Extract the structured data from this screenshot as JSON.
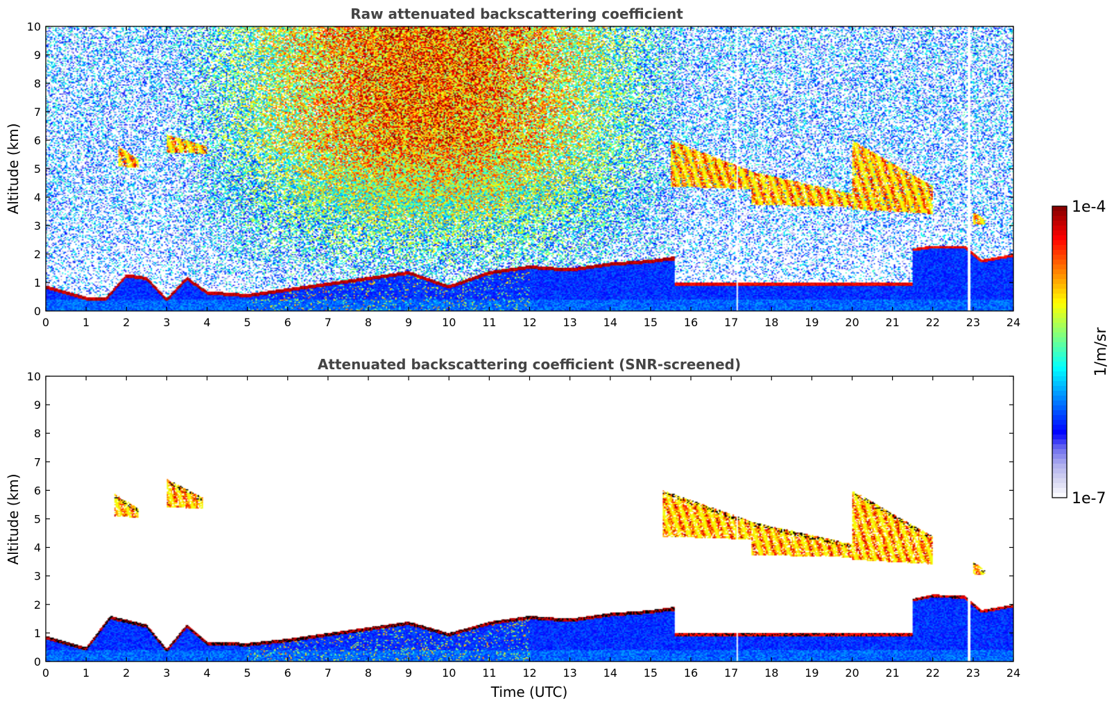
{
  "colors": {
    "colormap": [
      "#ffffff",
      "#d8d8f2",
      "#b0b0ee",
      "#7070ee",
      "#0000ff",
      "#0040ff",
      "#0080ff",
      "#00c0ff",
      "#00ffff",
      "#40ffc0",
      "#80ff80",
      "#c0ff40",
      "#ffff00",
      "#ffc000",
      "#ff8000",
      "#ff4000",
      "#ff0000",
      "#c00000",
      "#800000"
    ],
    "saturated": "#000000"
  },
  "colorbar": {
    "label": "1/m/sr",
    "max_label": "1e-4",
    "min_label": "1e-7",
    "log_min": -7,
    "log_max": -4
  },
  "chart_data": [
    {
      "type": "heatmap",
      "panel": "raw",
      "title": "Raw attenuated backscattering coefficient",
      "xlabel": "",
      "ylabel": "Altitude (km)",
      "xlim": [
        0,
        24
      ],
      "ylim": [
        0,
        10
      ],
      "xticks": [
        "0",
        "1",
        "2",
        "3",
        "4",
        "5",
        "6",
        "7",
        "8",
        "9",
        "10",
        "11",
        "12",
        "13",
        "14",
        "15",
        "16",
        "17",
        "18",
        "19",
        "20",
        "21",
        "22",
        "23",
        "24"
      ],
      "yticks": [
        "0",
        "1",
        "2",
        "3",
        "4",
        "5",
        "6",
        "7",
        "8",
        "9",
        "10"
      ],
      "grid": false,
      "features": {
        "boundary_layer_top_km": [
          [
            0,
            0.9
          ],
          [
            0.5,
            0.7
          ],
          [
            1,
            0.5
          ],
          [
            1.5,
            0.5
          ],
          [
            2,
            1.3
          ],
          [
            2.5,
            1.2
          ],
          [
            3,
            0.45
          ],
          [
            3.5,
            1.2
          ],
          [
            4,
            0.7
          ],
          [
            5,
            0.6
          ],
          [
            6,
            0.8
          ],
          [
            7,
            1.0
          ],
          [
            8,
            1.2
          ],
          [
            9,
            1.4
          ],
          [
            10,
            0.9
          ],
          [
            11,
            1.4
          ],
          [
            12,
            1.6
          ],
          [
            13,
            1.5
          ],
          [
            14,
            1.7
          ],
          [
            15,
            1.8
          ],
          [
            15.5,
            1.9
          ]
        ],
        "upper_cloud_layers": [
          {
            "t_start": 1.8,
            "t_end": 2.3,
            "base_km": 5.0,
            "top_km": 5.8
          },
          {
            "t_start": 3.0,
            "t_end": 4.0,
            "base_km": 5.5,
            "top_km": 6.2
          },
          {
            "t_start": 15.5,
            "t_end": 17.5,
            "base_km": 4.2,
            "top_km": 6.0
          },
          {
            "t_start": 17.5,
            "t_end": 20.0,
            "base_km": 3.6,
            "top_km": 4.9
          },
          {
            "t_start": 20.0,
            "t_end": 22.0,
            "base_km": 3.3,
            "top_km": 6.0
          },
          {
            "t_start": 23.0,
            "t_end": 23.3,
            "base_km": 3.0,
            "top_km": 3.5
          }
        ],
        "low_cloud_late_km": [
          [
            21.5,
            2.2
          ],
          [
            22,
            2.3
          ],
          [
            22.8,
            2.3
          ],
          [
            23.2,
            1.8
          ],
          [
            24,
            2.0
          ]
        ],
        "data_gaps_hours": [
          17.15,
          22.9
        ]
      }
    },
    {
      "type": "heatmap",
      "panel": "snr_screened",
      "title": "Attenuated backscattering coefficient (SNR-screened)",
      "xlabel": "Time (UTC)",
      "ylabel": "Altitude (km)",
      "xlim": [
        0,
        24
      ],
      "ylim": [
        0,
        10
      ],
      "xticks": [
        "0",
        "1",
        "2",
        "3",
        "4",
        "5",
        "6",
        "7",
        "8",
        "9",
        "10",
        "11",
        "12",
        "13",
        "14",
        "15",
        "16",
        "17",
        "18",
        "19",
        "20",
        "21",
        "22",
        "23",
        "24"
      ],
      "yticks": [
        "0",
        "1",
        "2",
        "3",
        "4",
        "5",
        "6",
        "7",
        "8",
        "9",
        "10"
      ],
      "grid": false,
      "features": {
        "boundary_layer_top_km": [
          [
            0,
            0.9
          ],
          [
            1,
            0.5
          ],
          [
            1.6,
            1.6
          ],
          [
            2.5,
            1.3
          ],
          [
            3,
            0.45
          ],
          [
            3.5,
            1.3
          ],
          [
            4,
            0.7
          ],
          [
            5,
            0.65
          ],
          [
            6,
            0.8
          ],
          [
            7,
            1.0
          ],
          [
            8,
            1.2
          ],
          [
            9,
            1.4
          ],
          [
            10,
            1.0
          ],
          [
            11,
            1.4
          ],
          [
            12,
            1.6
          ],
          [
            13,
            1.5
          ],
          [
            14,
            1.7
          ],
          [
            15,
            1.8
          ],
          [
            15.5,
            1.9
          ]
        ],
        "upper_cloud_layers": [
          {
            "t_start": 1.7,
            "t_end": 2.3,
            "base_km": 5.0,
            "top_km": 5.9
          },
          {
            "t_start": 3.0,
            "t_end": 3.9,
            "base_km": 5.3,
            "top_km": 6.4
          },
          {
            "t_start": 15.3,
            "t_end": 17.5,
            "base_km": 4.2,
            "top_km": 6.0
          },
          {
            "t_start": 17.5,
            "t_end": 20.0,
            "base_km": 3.6,
            "top_km": 4.9
          },
          {
            "t_start": 20.0,
            "t_end": 22.0,
            "base_km": 3.3,
            "top_km": 6.0
          },
          {
            "t_start": 23.0,
            "t_end": 23.3,
            "base_km": 3.0,
            "top_km": 3.5
          }
        ],
        "low_cloud_late_km": [
          [
            21.5,
            2.2
          ],
          [
            22,
            2.35
          ],
          [
            22.8,
            2.3
          ],
          [
            23.2,
            1.8
          ],
          [
            24,
            2.0
          ]
        ],
        "data_gaps_hours": [
          17.15,
          22.9
        ]
      }
    }
  ]
}
